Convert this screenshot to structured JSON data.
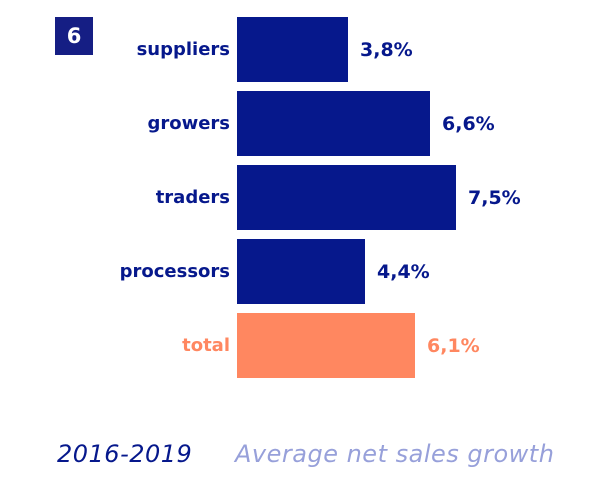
{
  "badge": {
    "number": "6"
  },
  "chart_data": {
    "type": "bar",
    "orientation": "horizontal",
    "title": "Average net sales growth",
    "period": "2016-2019",
    "categories": [
      "suppliers",
      "growers",
      "traders",
      "processors",
      "total"
    ],
    "values": [
      3.8,
      6.6,
      7.5,
      4.4,
      6.1
    ],
    "value_labels": [
      "3,8%",
      "6,6%",
      "7,5%",
      "4,4%",
      "6,1%"
    ],
    "unit": "%",
    "xlim": [
      0,
      7.5
    ],
    "grid": false,
    "legend": false,
    "highlight_index": 4,
    "bar_color": "#06188c",
    "highlight_color": "#ff8760"
  },
  "colors": {
    "navy": "#06188c",
    "badge_navy": "#151e84",
    "orange": "#ff8760",
    "lavender": "#97a0da",
    "background": "#ffffff"
  }
}
